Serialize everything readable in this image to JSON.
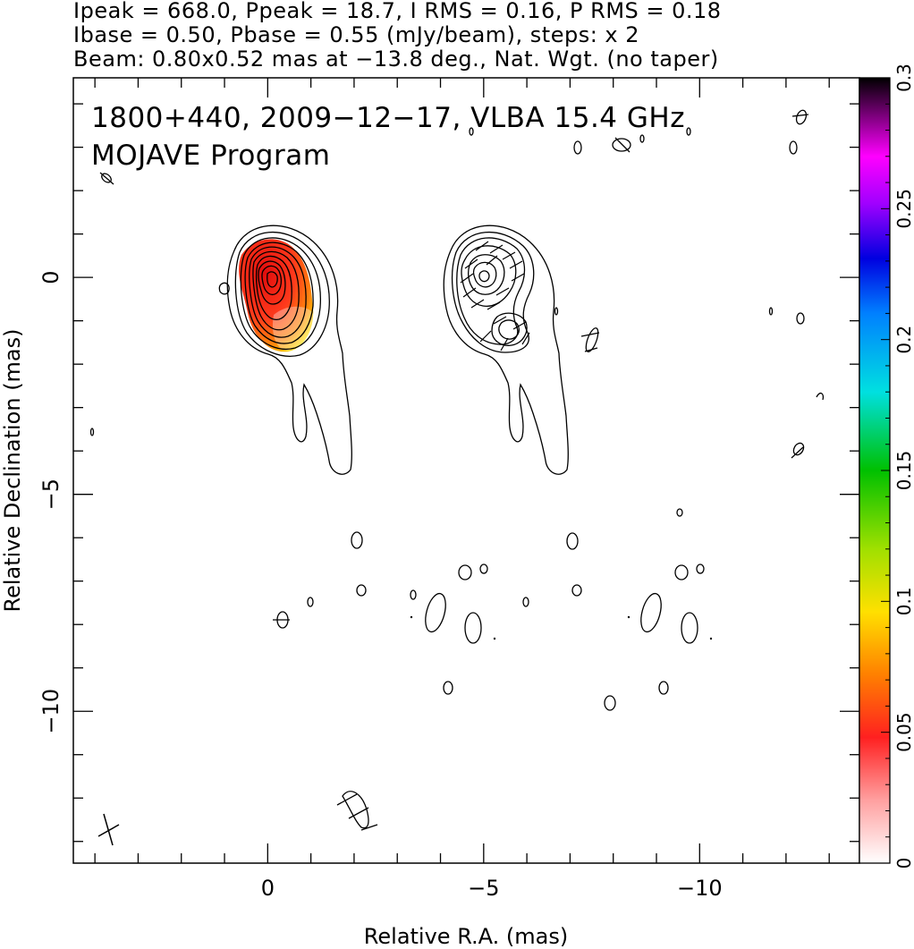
{
  "header": {
    "line1": "Ipeak = 668.0, Ppeak = 18.7, I RMS = 0.16, P RMS = 0.18",
    "line2": "Ibase = 0.50, Pbase = 0.55 (mJy/beam), steps: x 2",
    "line3": "Beam: 0.80x0.52 mas at −13.8 deg., Nat. Wgt. (no taper)"
  },
  "annotations": {
    "source": "1800+440, 2009−12−17, VLBA 15.4 GHz",
    "program": "MOJAVE Program"
  },
  "colors": {
    "contour": "#000000",
    "frame": "#000000",
    "fill_peak": "#ff2200",
    "fill_edge": "#ffee00"
  },
  "chart_data": {
    "type": "heatmap",
    "xlabel": "Relative R.A. (mas)",
    "ylabel": "Relative Declination (mas)",
    "xlim": [
      4.5,
      -13.7
    ],
    "ylim": [
      -13.5,
      4.6
    ],
    "x_axis_reversed": true,
    "x_ticks": [
      0,
      -5,
      -10
    ],
    "x_tick_labels": [
      "0",
      "−5",
      "−10"
    ],
    "y_ticks": [
      0,
      -5,
      -10
    ],
    "y_tick_labels": [
      "0",
      "−5",
      "−10"
    ],
    "colorbar": {
      "range": [
        0,
        0.3
      ],
      "ticks": [
        0,
        0.05,
        0.1,
        0.15,
        0.2,
        0.25,
        0.3
      ],
      "tick_labels": [
        "0",
        "0.05",
        "0.1",
        "0.15",
        "0.2",
        "0.25",
        "0.3"
      ]
    },
    "image_peak_mJy_per_beam": 668.0,
    "polarized_peak_mJy_per_beam": 18.7,
    "stokes_I_rms": 0.16,
    "polarized_rms": 0.18,
    "contour_base_I": 0.5,
    "contour_base_P": 0.55,
    "contour_step_factor": 2,
    "beam": {
      "major_mas": 0.8,
      "minor_mas": 0.52,
      "pa_deg": -13.8
    },
    "panels": [
      {
        "name": "total intensity + fractional polarization",
        "core_position": [
          0,
          0
        ],
        "jet_extent_dec": -4.5
      },
      {
        "name": "polarization vectors",
        "core_position": [
          -5,
          0
        ],
        "jet_extent_dec": -4.5
      }
    ]
  }
}
